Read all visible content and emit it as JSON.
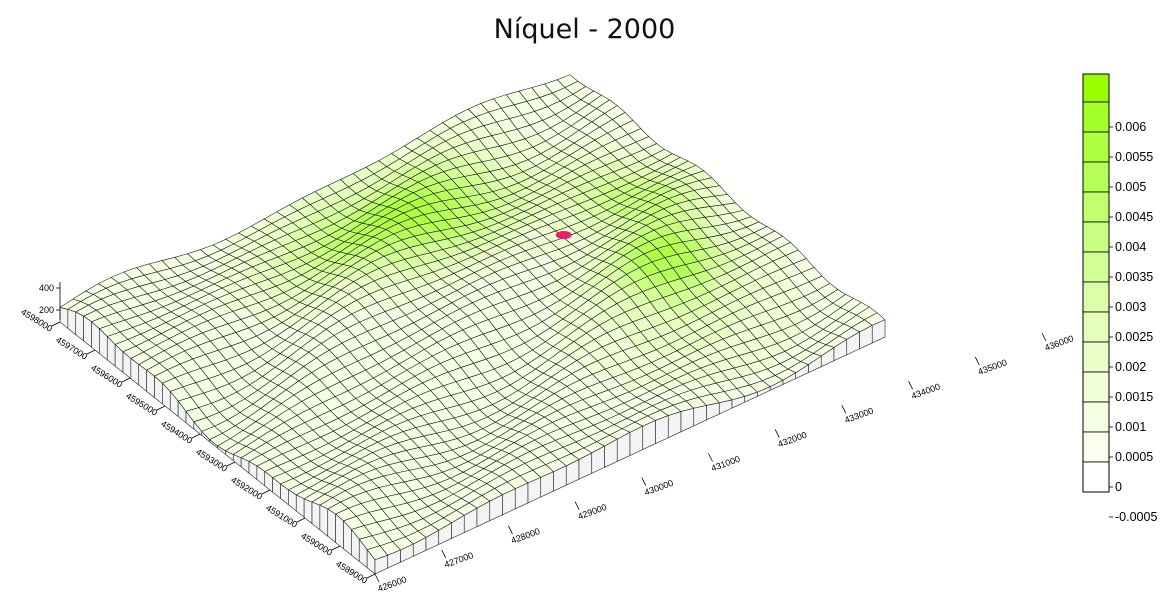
{
  "chart_data": {
    "type": "surface",
    "title": "Níquel - 2000",
    "x_ticks": [
      "426000",
      "427000",
      "428000",
      "429000",
      "430000",
      "431000",
      "432000",
      "433000",
      "434000",
      "435000",
      "436000"
    ],
    "y_ticks": [
      "4589000",
      "4590000",
      "4591000",
      "4592000",
      "4593000",
      "4594000",
      "4595000",
      "4596000",
      "4597000",
      "4598000"
    ],
    "z_ticks": [
      "200",
      "400"
    ],
    "colorbar": {
      "ticks": [
        "0.006",
        "0.0055",
        "0.005",
        "0.0045",
        "0.004",
        "0.0035",
        "0.003",
        "0.0025",
        "0.002",
        "0.0015",
        "0.001",
        "0.0005",
        "0",
        "-0.0005"
      ],
      "colors": [
        "#99ff00",
        "#a3ff26",
        "#adff40",
        "#b6ff59",
        "#c0ff6e",
        "#c9ff83",
        "#d2ff96",
        "#dbffa8",
        "#e3ffb9",
        "#eaffc8",
        "#f0ffd6",
        "#f5ffe3",
        "#faffef",
        "#ffffff"
      ]
    },
    "peak_marker": {
      "color": "#e8206f"
    }
  }
}
